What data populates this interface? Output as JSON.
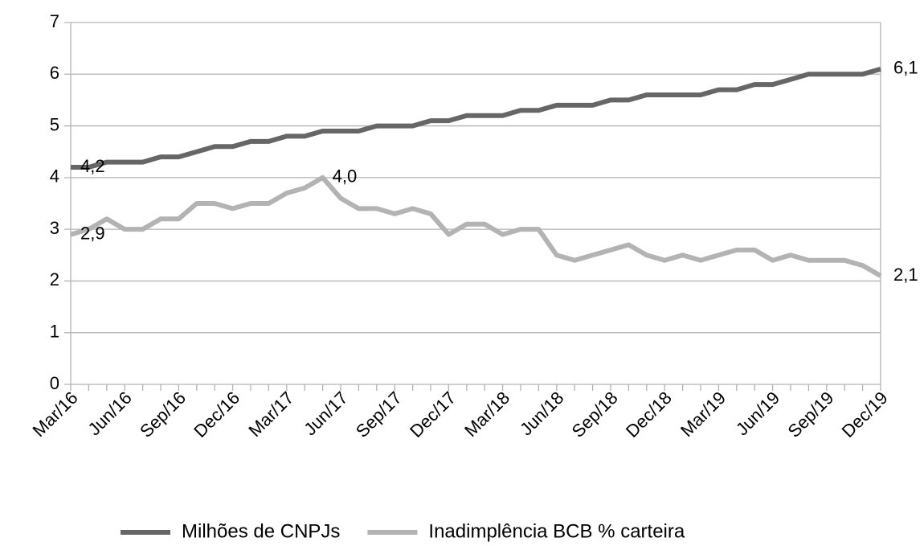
{
  "chart_data": {
    "type": "line",
    "categories": [
      "Mar/16",
      null,
      null,
      "Jun/16",
      null,
      null,
      "Sep/16",
      null,
      null,
      "Dec/16",
      null,
      null,
      "Mar/17",
      null,
      null,
      "Jun/17",
      null,
      null,
      "Sep/17",
      null,
      null,
      "Dec/17",
      null,
      null,
      "Mar/18",
      null,
      null,
      "Jun/18",
      null,
      null,
      "Sep/18",
      null,
      null,
      "Dec/18",
      null,
      null,
      "Mar/19",
      null,
      null,
      "Jun/19",
      null,
      null,
      "Sep/19",
      null,
      null,
      "Dec/19"
    ],
    "series": [
      {
        "name": "Milhões de CNPJs",
        "color": "#666666",
        "values": [
          4.2,
          4.2,
          4.3,
          4.3,
          4.3,
          4.4,
          4.4,
          4.5,
          4.6,
          4.6,
          4.7,
          4.7,
          4.8,
          4.8,
          4.9,
          4.9,
          4.9,
          5.0,
          5.0,
          5.0,
          5.1,
          5.1,
          5.2,
          5.2,
          5.2,
          5.3,
          5.3,
          5.4,
          5.4,
          5.4,
          5.5,
          5.5,
          5.6,
          5.6,
          5.6,
          5.6,
          5.7,
          5.7,
          5.8,
          5.8,
          5.9,
          6.0,
          6.0,
          6.0,
          6.0,
          6.1
        ],
        "value_labels": [
          "4,2",
          null,
          null,
          null,
          null,
          null,
          null,
          null,
          null,
          null,
          null,
          null,
          null,
          null,
          null,
          null,
          null,
          null,
          null,
          null,
          null,
          null,
          null,
          null,
          null,
          null,
          null,
          null,
          null,
          null,
          null,
          null,
          null,
          null,
          null,
          null,
          null,
          null,
          null,
          null,
          null,
          null,
          null,
          null,
          null,
          "6,1"
        ]
      },
      {
        "name": "Inadimplência BCB % carteira",
        "color": "#b3b3b3",
        "values": [
          2.9,
          3.0,
          3.2,
          3.0,
          3.0,
          3.2,
          3.2,
          3.5,
          3.5,
          3.4,
          3.5,
          3.5,
          3.7,
          3.8,
          4.0,
          3.6,
          3.4,
          3.4,
          3.3,
          3.4,
          3.3,
          2.9,
          3.1,
          3.1,
          2.9,
          3.0,
          3.0,
          2.5,
          2.4,
          2.5,
          2.6,
          2.7,
          2.5,
          2.4,
          2.5,
          2.4,
          2.5,
          2.6,
          2.6,
          2.4,
          2.5,
          2.4,
          2.4,
          2.4,
          2.3,
          2.1
        ],
        "value_labels": [
          "2,9",
          null,
          null,
          null,
          null,
          null,
          null,
          null,
          null,
          null,
          null,
          null,
          null,
          null,
          "4,0",
          null,
          null,
          null,
          null,
          null,
          null,
          null,
          null,
          null,
          null,
          null,
          null,
          null,
          null,
          null,
          null,
          null,
          null,
          null,
          null,
          null,
          null,
          null,
          null,
          null,
          null,
          null,
          null,
          null,
          null,
          "2,1"
        ]
      }
    ],
    "ylim": [
      0,
      7
    ],
    "yticks": [
      0,
      1,
      2,
      3,
      4,
      5,
      6,
      7
    ],
    "grid": true,
    "legend": "bottom"
  }
}
